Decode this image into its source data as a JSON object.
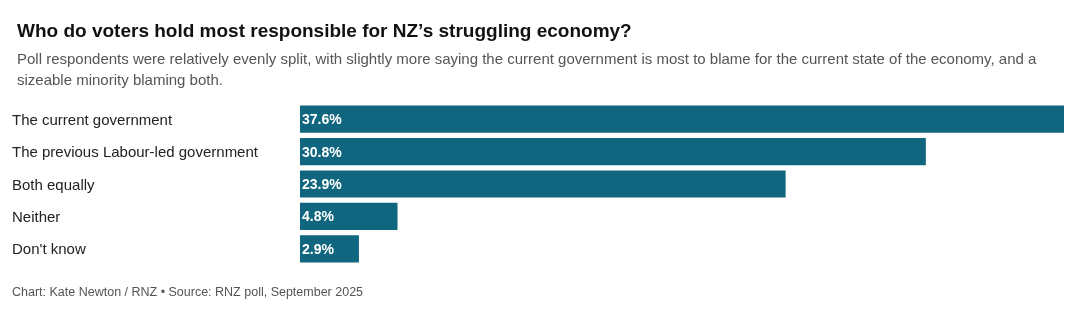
{
  "chart_data": {
    "type": "bar",
    "orientation": "horizontal",
    "title": "Who do voters hold most responsible for NZ’s struggling economy?",
    "subtitle": "Poll respondents were relatively evenly split, with slightly more saying the current government is most to blame for the current state of the economy, and a sizeable minority blaming both.",
    "categories": [
      "The current government",
      "The previous Labour-led government",
      "Both equally",
      "Neither",
      "Don't know"
    ],
    "values": [
      37.6,
      30.8,
      23.9,
      4.8,
      2.9
    ],
    "value_labels": [
      "37.6%",
      "30.8%",
      "23.9%",
      "4.8%",
      "2.9%"
    ],
    "color": "#10667f",
    "annotations": [
      "Chart: Kate Newton / RNZ • Source: RNZ poll, September 2025"
    ]
  }
}
